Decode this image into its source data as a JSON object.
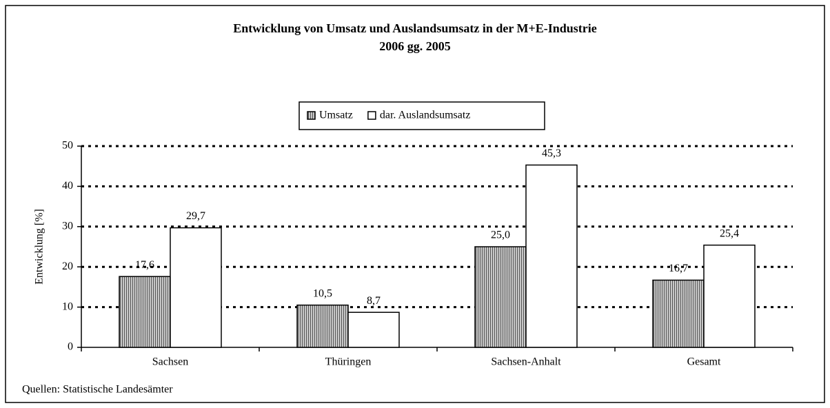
{
  "chart_data": {
    "type": "bar",
    "title": "Entwicklung von Umsatz und Auslandsumsatz in der M+E-Industrie",
    "subtitle": "2006 gg. 2005",
    "y_label": "Entwicklung [%]",
    "source": "Quellen: Statistische Landesämter",
    "categories": [
      "Sachsen",
      "Thüringen",
      "Sachsen-Anhalt",
      "Gesamt"
    ],
    "series": [
      {
        "name": "Umsatz",
        "color": "#b8b8b8",
        "hatch": true,
        "values": [
          17.6,
          10.5,
          25.0,
          16.7
        ],
        "value_labels": [
          "17,6",
          "10,5",
          "25,0",
          "16,7"
        ]
      },
      {
        "name": "dar. Auslandsumsatz",
        "color": "#ffffff",
        "hatch": false,
        "values": [
          29.7,
          8.7,
          45.3,
          25.4
        ],
        "value_labels": [
          "29,7",
          "8,7",
          "45,3",
          "25,4"
        ]
      }
    ],
    "ylim": [
      0,
      50
    ],
    "yticks": [
      0,
      10,
      20,
      30,
      40,
      50
    ],
    "grid": true,
    "legend": "top"
  }
}
